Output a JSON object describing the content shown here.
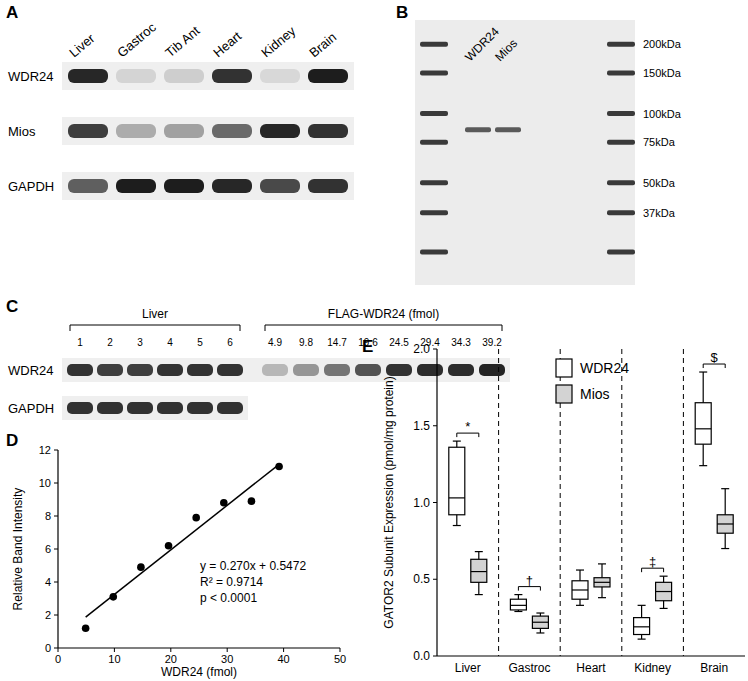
{
  "panel_labels": [
    "A",
    "B",
    "C",
    "D",
    "E"
  ],
  "blot_a": {
    "lanes": [
      "Liver",
      "Gastroc",
      "Tib Ant",
      "Heart",
      "Kidney",
      "Brain"
    ],
    "rows": [
      {
        "name": "WDR24",
        "bands": [
          0.9,
          0.12,
          0.15,
          0.85,
          0.1,
          0.95
        ]
      },
      {
        "name": "Mios",
        "bands": [
          0.8,
          0.3,
          0.35,
          0.6,
          0.9,
          0.85
        ]
      },
      {
        "name": "GAPDH",
        "bands": [
          0.65,
          0.95,
          0.95,
          0.9,
          0.75,
          0.85
        ]
      }
    ]
  },
  "gel_b": {
    "lanes": [
      "WDR24",
      "Mios"
    ],
    "sample_band_kda": [
      85,
      85
    ],
    "ladder": [
      {
        "value": 200,
        "label": "200kDa"
      },
      {
        "value": 150,
        "label": "150kDa"
      },
      {
        "value": 100,
        "label": "100kDa"
      },
      {
        "value": 75,
        "label": "75kDa"
      },
      {
        "value": 50,
        "label": "50kDa"
      },
      {
        "value": 37,
        "label": "37kDa"
      },
      {
        "value": 25,
        "label": null
      }
    ]
  },
  "blot_c": {
    "groups": [
      {
        "name": "Liver",
        "lanes": [
          1,
          2,
          3,
          4,
          5,
          6
        ]
      },
      {
        "name": "FLAG-WDR24 (fmol)",
        "lanes": [
          4.9,
          9.8,
          14.7,
          19.6,
          24.5,
          29.4,
          34.3,
          39.2
        ]
      }
    ],
    "rows": [
      {
        "name": "WDR24",
        "bands": [
          0.85,
          0.8,
          0.8,
          0.85,
          0.85,
          0.85,
          0.25,
          0.4,
          0.55,
          0.7,
          0.85,
          0.88,
          0.88,
          0.92
        ]
      },
      {
        "name": "GAPDH",
        "bands": [
          0.85,
          0.85,
          0.85,
          0.85,
          0.85,
          0.85,
          null,
          null,
          null,
          null,
          null,
          null,
          null,
          null
        ]
      }
    ]
  },
  "chart_data": [
    {
      "type": "scatter",
      "x": [
        4.9,
        9.8,
        14.7,
        19.6,
        24.5,
        29.4,
        34.3,
        39.2
      ],
      "values": [
        1.2,
        3.1,
        4.9,
        6.2,
        7.9,
        8.8,
        8.9,
        11.0
      ],
      "color": "#000000",
      "marker": "circle",
      "xlim": [
        0,
        50
      ],
      "xticks": [
        0,
        10,
        20,
        30,
        40,
        50
      ],
      "ylim": [
        0,
        12
      ],
      "yticks": [
        0,
        2,
        4,
        6,
        8,
        10,
        12
      ],
      "xlabel": "WDR24 (fmol)",
      "ylabel": "Relative Band Intensity",
      "fit": {
        "slope": 0.27,
        "intercept": 0.5472
      },
      "annotations": [
        "y = 0.270x + 0.5472",
        "R² = 0.9714",
        "p < 0.0001"
      ],
      "grid": false
    },
    {
      "type": "box",
      "categories": [
        "Liver",
        "Gastroc",
        "Heart",
        "Kidney",
        "Brain"
      ],
      "series": [
        {
          "name": "WDR24",
          "color": "#ffffff",
          "values": [
            {
              "min": 0.85,
              "q1": 0.92,
              "median": 1.03,
              "q3": 1.36,
              "max": 1.4
            },
            {
              "min": 0.29,
              "q1": 0.3,
              "median": 0.33,
              "q3": 0.37,
              "max": 0.4
            },
            {
              "min": 0.33,
              "q1": 0.37,
              "median": 0.43,
              "q3": 0.49,
              "max": 0.56
            },
            {
              "min": 0.11,
              "q1": 0.14,
              "median": 0.19,
              "q3": 0.25,
              "max": 0.33
            },
            {
              "min": 1.24,
              "q1": 1.38,
              "median": 1.48,
              "q3": 1.65,
              "max": 1.85
            }
          ]
        },
        {
          "name": "Mios",
          "color": "#d3d3d3",
          "values": [
            {
              "min": 0.4,
              "q1": 0.48,
              "median": 0.55,
              "q3": 0.63,
              "max": 0.68
            },
            {
              "min": 0.15,
              "q1": 0.18,
              "median": 0.22,
              "q3": 0.26,
              "max": 0.28
            },
            {
              "min": 0.38,
              "q1": 0.45,
              "median": 0.48,
              "q3": 0.51,
              "max": 0.6
            },
            {
              "min": 0.31,
              "q1": 0.36,
              "median": 0.42,
              "q3": 0.48,
              "max": 0.52
            },
            {
              "min": 0.7,
              "q1": 0.8,
              "median": 0.86,
              "q3": 0.92,
              "max": 1.09
            }
          ]
        }
      ],
      "ylim": [
        0,
        2
      ],
      "yticks": [
        {
          "value": 0,
          "label": "0.0"
        },
        {
          "value": 0.5,
          "label": "0.5"
        },
        {
          "value": 1,
          "label": "1.0"
        },
        {
          "value": 1.5,
          "label": "1.5"
        },
        {
          "value": 2,
          "label": "2.0"
        }
      ],
      "ylabel": "GATOR2 Subunit Expression (pmol/mg protein)",
      "legend": "upper center",
      "grid": false,
      "annotations": [
        "*",
        "†",
        null,
        "‡",
        "$"
      ]
    }
  ]
}
